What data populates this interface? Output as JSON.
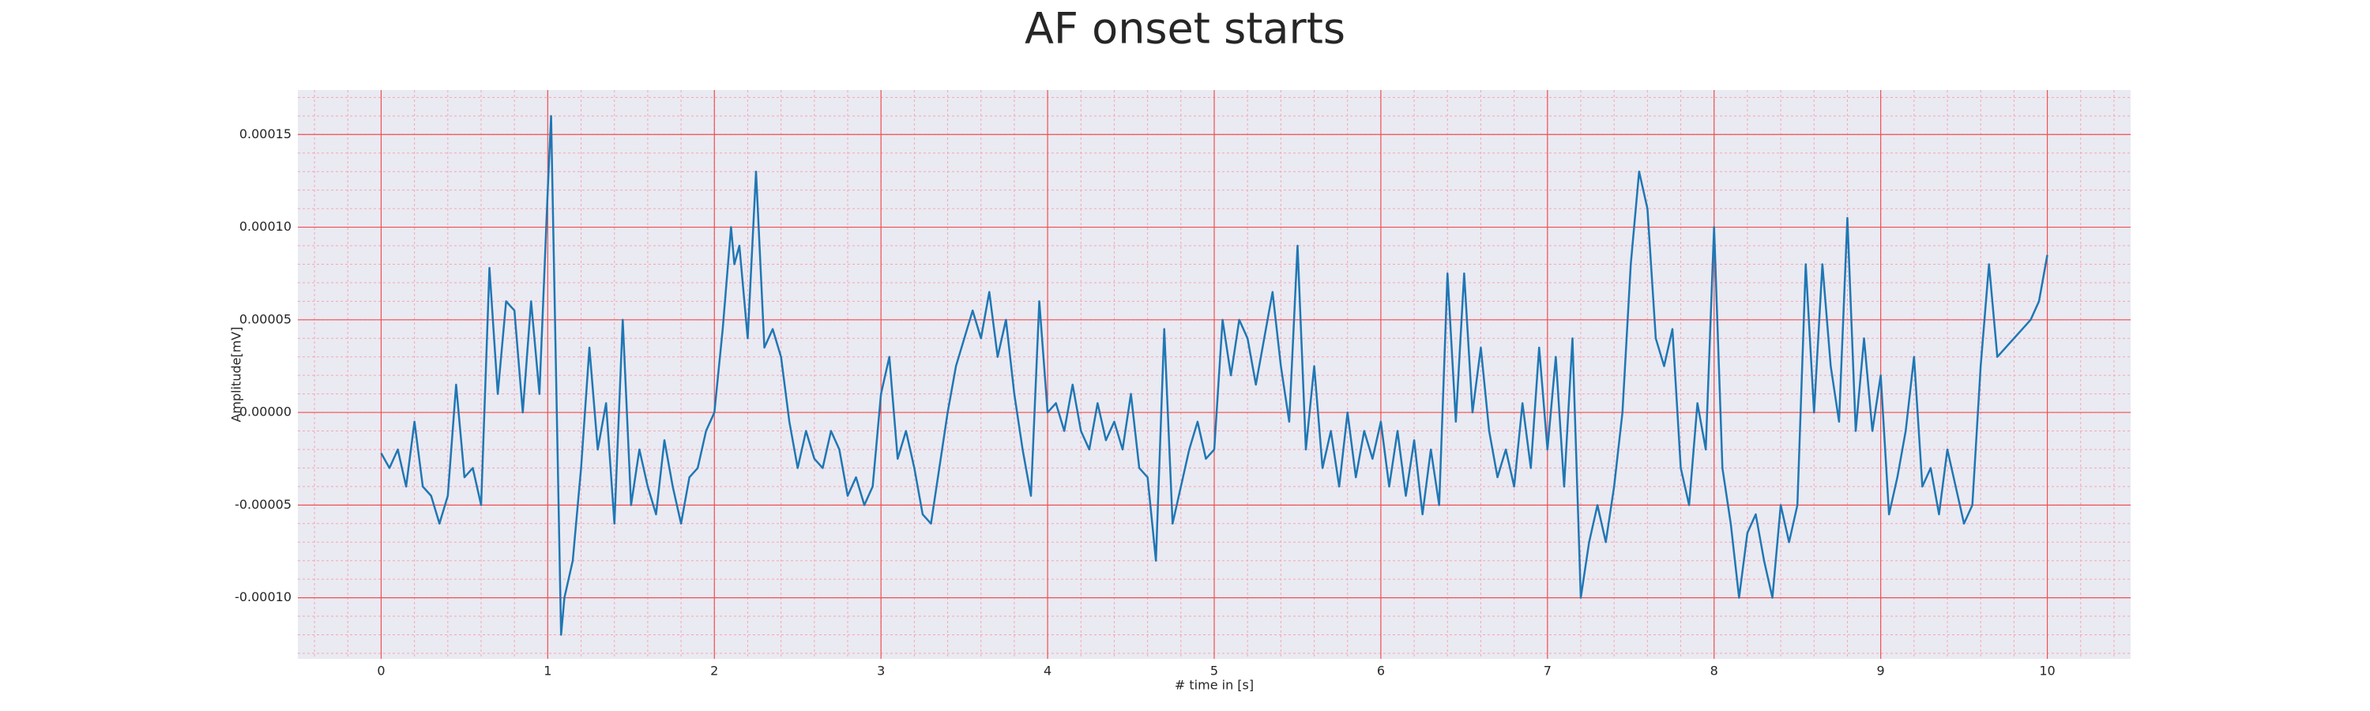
{
  "chart_data": {
    "type": "line",
    "title": "AF onset starts",
    "xlabel": "# time in [s]",
    "ylabel": "Amplitude[mV]",
    "color": "#1f77b4",
    "grid": true,
    "minor_grid": true,
    "xlim": [
      -0.5,
      10.5
    ],
    "xticks": [
      0,
      1,
      2,
      3,
      4,
      5,
      6,
      7,
      8,
      9,
      10
    ],
    "ylim": [
      -0.000133,
      0.000174
    ],
    "yticks": [
      {
        "value": -0.0001,
        "label": "-0.00010"
      },
      -5e-05,
      {
        "value": 0,
        "label": "0.00000"
      },
      5e-05,
      {
        "value": 0.0001,
        "label": "0.00010"
      },
      0.00015
    ],
    "x": [
      0,
      0.05,
      0.1,
      0.15,
      0.2,
      0.25,
      0.3,
      0.35,
      0.4,
      0.45,
      0.5,
      0.55,
      0.6,
      0.65,
      0.7,
      0.75,
      0.8,
      0.85,
      0.9,
      0.95,
      1.0,
      1.02,
      1.05,
      1.08,
      1.1,
      1.15,
      1.2,
      1.25,
      1.3,
      1.35,
      1.4,
      1.45,
      1.5,
      1.55,
      1.6,
      1.65,
      1.7,
      1.75,
      1.8,
      1.85,
      1.9,
      1.95,
      2.0,
      2.05,
      2.1,
      2.12,
      2.15,
      2.2,
      2.25,
      2.3,
      2.35,
      2.4,
      2.45,
      2.5,
      2.55,
      2.6,
      2.65,
      2.7,
      2.75,
      2.8,
      2.85,
      2.9,
      2.95,
      3.0,
      3.05,
      3.1,
      3.15,
      3.2,
      3.25,
      3.3,
      3.35,
      3.4,
      3.45,
      3.5,
      3.55,
      3.6,
      3.65,
      3.7,
      3.75,
      3.8,
      3.85,
      3.9,
      3.95,
      4.0,
      4.05,
      4.1,
      4.15,
      4.2,
      4.25,
      4.3,
      4.35,
      4.4,
      4.45,
      4.5,
      4.55,
      4.6,
      4.65,
      4.7,
      4.75,
      4.8,
      4.85,
      4.9,
      4.95,
      5.0,
      5.05,
      5.1,
      5.15,
      5.2,
      5.25,
      5.3,
      5.35,
      5.4,
      5.45,
      5.5,
      5.55,
      5.6,
      5.65,
      5.7,
      5.75,
      5.8,
      5.85,
      5.9,
      5.95,
      6.0,
      6.05,
      6.1,
      6.15,
      6.2,
      6.25,
      6.3,
      6.35,
      6.4,
      6.45,
      6.5,
      6.55,
      6.6,
      6.65,
      6.7,
      6.75,
      6.8,
      6.85,
      6.9,
      6.95,
      7.0,
      7.05,
      7.1,
      7.15,
      7.2,
      7.25,
      7.3,
      7.35,
      7.4,
      7.45,
      7.5,
      7.55,
      7.6,
      7.65,
      7.7,
      7.75,
      7.8,
      7.85,
      7.9,
      7.95,
      8.0,
      8.05,
      8.1,
      8.15,
      8.2,
      8.25,
      8.3,
      8.35,
      8.4,
      8.45,
      8.5,
      8.55,
      8.6,
      8.65,
      8.7,
      8.75,
      8.8,
      8.85,
      8.9,
      8.95,
      9.0,
      9.05,
      9.1,
      9.15,
      9.2,
      9.25,
      9.3,
      9.35,
      9.4,
      9.45,
      9.5,
      9.55,
      9.6,
      9.65,
      9.7,
      9.75,
      9.8,
      9.85,
      9.9,
      9.95,
      10.0
    ],
    "values": [
      -2.2e-05,
      -3e-05,
      -2e-05,
      -4e-05,
      -5e-06,
      -4e-05,
      -4.5e-05,
      -6e-05,
      -4.5e-05,
      1.5e-05,
      -3.5e-05,
      -3e-05,
      -5e-05,
      7.8e-05,
      1e-05,
      6e-05,
      5.5e-05,
      0,
      6e-05,
      1e-05,
      0.00012,
      0.00016,
      2e-05,
      -0.00012,
      -0.0001,
      -8e-05,
      -3e-05,
      3.5e-05,
      -2e-05,
      5e-06,
      -6e-05,
      5e-05,
      -5e-05,
      -2e-05,
      -4e-05,
      -5.5e-05,
      -1.5e-05,
      -4e-05,
      -6e-05,
      -3.5e-05,
      -3e-05,
      -1e-05,
      0,
      4.5e-05,
      0.0001,
      8e-05,
      9e-05,
      4e-05,
      0.00013,
      3.5e-05,
      4.5e-05,
      3e-05,
      -5e-06,
      -3e-05,
      -1e-05,
      -2.5e-05,
      -3e-05,
      -1e-05,
      -2e-05,
      -4.5e-05,
      -3.5e-05,
      -5e-05,
      -4e-05,
      1e-05,
      3e-05,
      -2.5e-05,
      -1e-05,
      -3e-05,
      -5.5e-05,
      -6e-05,
      -3e-05,
      0,
      2.5e-05,
      4e-05,
      5.5e-05,
      4e-05,
      6.5e-05,
      3e-05,
      5e-05,
      1e-05,
      -2e-05,
      -4.5e-05,
      6e-05,
      0,
      5e-06,
      -1e-05,
      1.5e-05,
      -1e-05,
      -2e-05,
      5e-06,
      -1.5e-05,
      -5e-06,
      -2e-05,
      1e-05,
      -3e-05,
      -3.5e-05,
      -8e-05,
      4.5e-05,
      -6e-05,
      -4e-05,
      -2e-05,
      -5e-06,
      -2.5e-05,
      -2e-05,
      5e-05,
      2e-05,
      5e-05,
      4e-05,
      1.5e-05,
      4e-05,
      6.5e-05,
      2.5e-05,
      -5e-06,
      9e-05,
      -2e-05,
      2.5e-05,
      -3e-05,
      -1e-05,
      -4e-05,
      0,
      -3.5e-05,
      -1e-05,
      -2.5e-05,
      -5e-06,
      -4e-05,
      -1e-05,
      -4.5e-05,
      -1.5e-05,
      -5.5e-05,
      -2e-05,
      -5e-05,
      7.5e-05,
      -5e-06,
      7.5e-05,
      0,
      3.5e-05,
      -1e-05,
      -3.5e-05,
      -2e-05,
      -4e-05,
      5e-06,
      -3e-05,
      3.5e-05,
      -2e-05,
      3e-05,
      -4e-05,
      4e-05,
      -0.0001,
      -7e-05,
      -5e-05,
      -7e-05,
      -4e-05,
      0,
      8e-05,
      0.00013,
      0.00011,
      4e-05,
      2.5e-05,
      4.5e-05,
      -3e-05,
      -5e-05,
      5e-06,
      -2e-05,
      0.0001,
      -3e-05,
      -6e-05,
      -0.0001,
      -6.5e-05,
      -5.5e-05,
      -8e-05,
      -0.0001,
      -5e-05,
      -7e-05,
      -5e-05,
      8e-05,
      0,
      8e-05,
      2.5e-05,
      -5e-06,
      0.000105,
      -1e-05,
      4e-05,
      -1e-05,
      2e-05,
      -5.5e-05,
      -3.5e-05,
      -1e-05,
      3e-05,
      -4e-05,
      -3e-05,
      -5.5e-05,
      -2e-05,
      -4e-05,
      -6e-05,
      -5e-05,
      2.5e-05,
      8e-05,
      3e-05,
      3.5e-05,
      4e-05,
      4.5e-05,
      5e-05,
      6e-05,
      8.5e-05
    ]
  }
}
